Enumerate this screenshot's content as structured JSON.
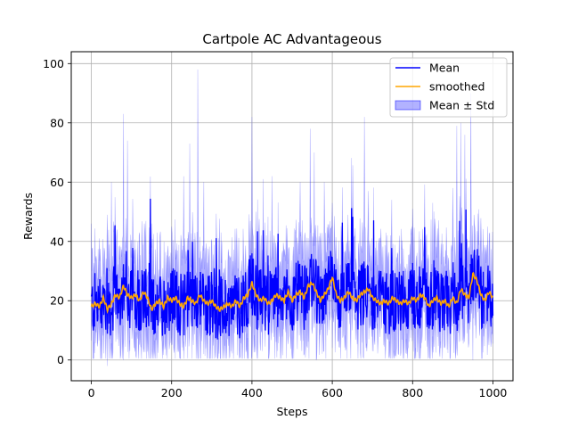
{
  "chart_data": {
    "type": "line",
    "title": "Cartpole AC Advantageous",
    "xlabel": "Steps",
    "ylabel": "Rewards",
    "xlim": [
      -50,
      1050
    ],
    "ylim": [
      -7,
      104
    ],
    "x_ticks": [
      0,
      200,
      400,
      600,
      800,
      1000
    ],
    "y_ticks": [
      0,
      20,
      40,
      60,
      80,
      100
    ],
    "grid": true,
    "legend_position": "upper right",
    "x_step_count": 1001,
    "series": [
      {
        "name": "Mean",
        "kind": "line",
        "color": "#0000ff",
        "y_approx_by_step_100": [
          {
            "x": 0,
            "y": 18
          },
          {
            "x": 100,
            "y": 20
          },
          {
            "x": 200,
            "y": 19
          },
          {
            "x": 300,
            "y": 17
          },
          {
            "x": 400,
            "y": 22
          },
          {
            "x": 500,
            "y": 20
          },
          {
            "x": 600,
            "y": 21
          },
          {
            "x": 700,
            "y": 20
          },
          {
            "x": 800,
            "y": 19
          },
          {
            "x": 900,
            "y": 22
          },
          {
            "x": 1000,
            "y": 19
          }
        ],
        "range_min": 5,
        "range_max": 57
      },
      {
        "name": "smoothed",
        "kind": "line",
        "color": "#ffa500",
        "points": [
          [
            0,
            18
          ],
          [
            10,
            19
          ],
          [
            20,
            18
          ],
          [
            30,
            21
          ],
          [
            40,
            17
          ],
          [
            50,
            19
          ],
          [
            60,
            22
          ],
          [
            70,
            21
          ],
          [
            80,
            25
          ],
          [
            90,
            22
          ],
          [
            100,
            21
          ],
          [
            110,
            22
          ],
          [
            120,
            20
          ],
          [
            130,
            23
          ],
          [
            140,
            21
          ],
          [
            150,
            17
          ],
          [
            160,
            19
          ],
          [
            170,
            20
          ],
          [
            180,
            18
          ],
          [
            190,
            21
          ],
          [
            200,
            20
          ],
          [
            210,
            21
          ],
          [
            220,
            19
          ],
          [
            230,
            18
          ],
          [
            240,
            21
          ],
          [
            250,
            20
          ],
          [
            260,
            19
          ],
          [
            270,
            22
          ],
          [
            280,
            20
          ],
          [
            290,
            19
          ],
          [
            300,
            20
          ],
          [
            310,
            18
          ],
          [
            320,
            17
          ],
          [
            330,
            18
          ],
          [
            340,
            19
          ],
          [
            350,
            18
          ],
          [
            360,
            20
          ],
          [
            370,
            18
          ],
          [
            380,
            21
          ],
          [
            390,
            22
          ],
          [
            400,
            26
          ],
          [
            410,
            22
          ],
          [
            420,
            20
          ],
          [
            430,
            21
          ],
          [
            440,
            19
          ],
          [
            450,
            20
          ],
          [
            460,
            22
          ],
          [
            470,
            21
          ],
          [
            480,
            20
          ],
          [
            490,
            23
          ],
          [
            500,
            20
          ],
          [
            510,
            22
          ],
          [
            520,
            23
          ],
          [
            530,
            21
          ],
          [
            540,
            25
          ],
          [
            550,
            26
          ],
          [
            560,
            23
          ],
          [
            570,
            20
          ],
          [
            580,
            22
          ],
          [
            590,
            24
          ],
          [
            600,
            28
          ],
          [
            610,
            22
          ],
          [
            620,
            20
          ],
          [
            630,
            21
          ],
          [
            640,
            23
          ],
          [
            650,
            21
          ],
          [
            660,
            20
          ],
          [
            670,
            22
          ],
          [
            680,
            23
          ],
          [
            690,
            24
          ],
          [
            700,
            21
          ],
          [
            710,
            20
          ],
          [
            720,
            19
          ],
          [
            730,
            20
          ],
          [
            740,
            19
          ],
          [
            750,
            21
          ],
          [
            760,
            20
          ],
          [
            770,
            19
          ],
          [
            780,
            20
          ],
          [
            790,
            19
          ],
          [
            800,
            21
          ],
          [
            810,
            20
          ],
          [
            820,
            22
          ],
          [
            830,
            21
          ],
          [
            840,
            18
          ],
          [
            850,
            20
          ],
          [
            860,
            21
          ],
          [
            870,
            19
          ],
          [
            880,
            20
          ],
          [
            890,
            18
          ],
          [
            900,
            21
          ],
          [
            910,
            19
          ],
          [
            920,
            24
          ],
          [
            930,
            22
          ],
          [
            940,
            21
          ],
          [
            950,
            29
          ],
          [
            960,
            27
          ],
          [
            970,
            22
          ],
          [
            980,
            20
          ],
          [
            990,
            23
          ],
          [
            1000,
            21
          ]
        ]
      },
      {
        "name": "Mean ± Std",
        "kind": "band",
        "color": "#0000ff",
        "opacity": 0.3,
        "peaks": [
          [
            0,
            46
          ],
          [
            20,
            41
          ],
          [
            40,
            49
          ],
          [
            50,
            60
          ],
          [
            80,
            83
          ],
          [
            90,
            74
          ],
          [
            120,
            43
          ],
          [
            150,
            46
          ],
          [
            200,
            45
          ],
          [
            230,
            62
          ],
          [
            245,
            73
          ],
          [
            265,
            98
          ],
          [
            280,
            60
          ],
          [
            400,
            82
          ],
          [
            410,
            50
          ],
          [
            450,
            62
          ],
          [
            520,
            60
          ],
          [
            545,
            78
          ],
          [
            555,
            70
          ],
          [
            580,
            60
          ],
          [
            600,
            53
          ],
          [
            680,
            82
          ],
          [
            690,
            57
          ],
          [
            800,
            51
          ],
          [
            850,
            53
          ],
          [
            900,
            58
          ],
          [
            910,
            79
          ],
          [
            920,
            80
          ],
          [
            930,
            76
          ],
          [
            945,
            90
          ],
          [
            990,
            27
          ]
        ],
        "troughs": [
          [
            40,
            -2
          ],
          [
            80,
            0
          ],
          [
            150,
            3
          ],
          [
            200,
            5
          ],
          [
            280,
            2
          ],
          [
            330,
            5
          ],
          [
            400,
            1
          ],
          [
            460,
            6
          ],
          [
            560,
            0
          ],
          [
            600,
            4
          ],
          [
            700,
            3
          ],
          [
            760,
            4
          ],
          [
            820,
            4
          ],
          [
            870,
            4
          ],
          [
            950,
            0
          ],
          [
            990,
            5
          ]
        ]
      }
    ]
  }
}
